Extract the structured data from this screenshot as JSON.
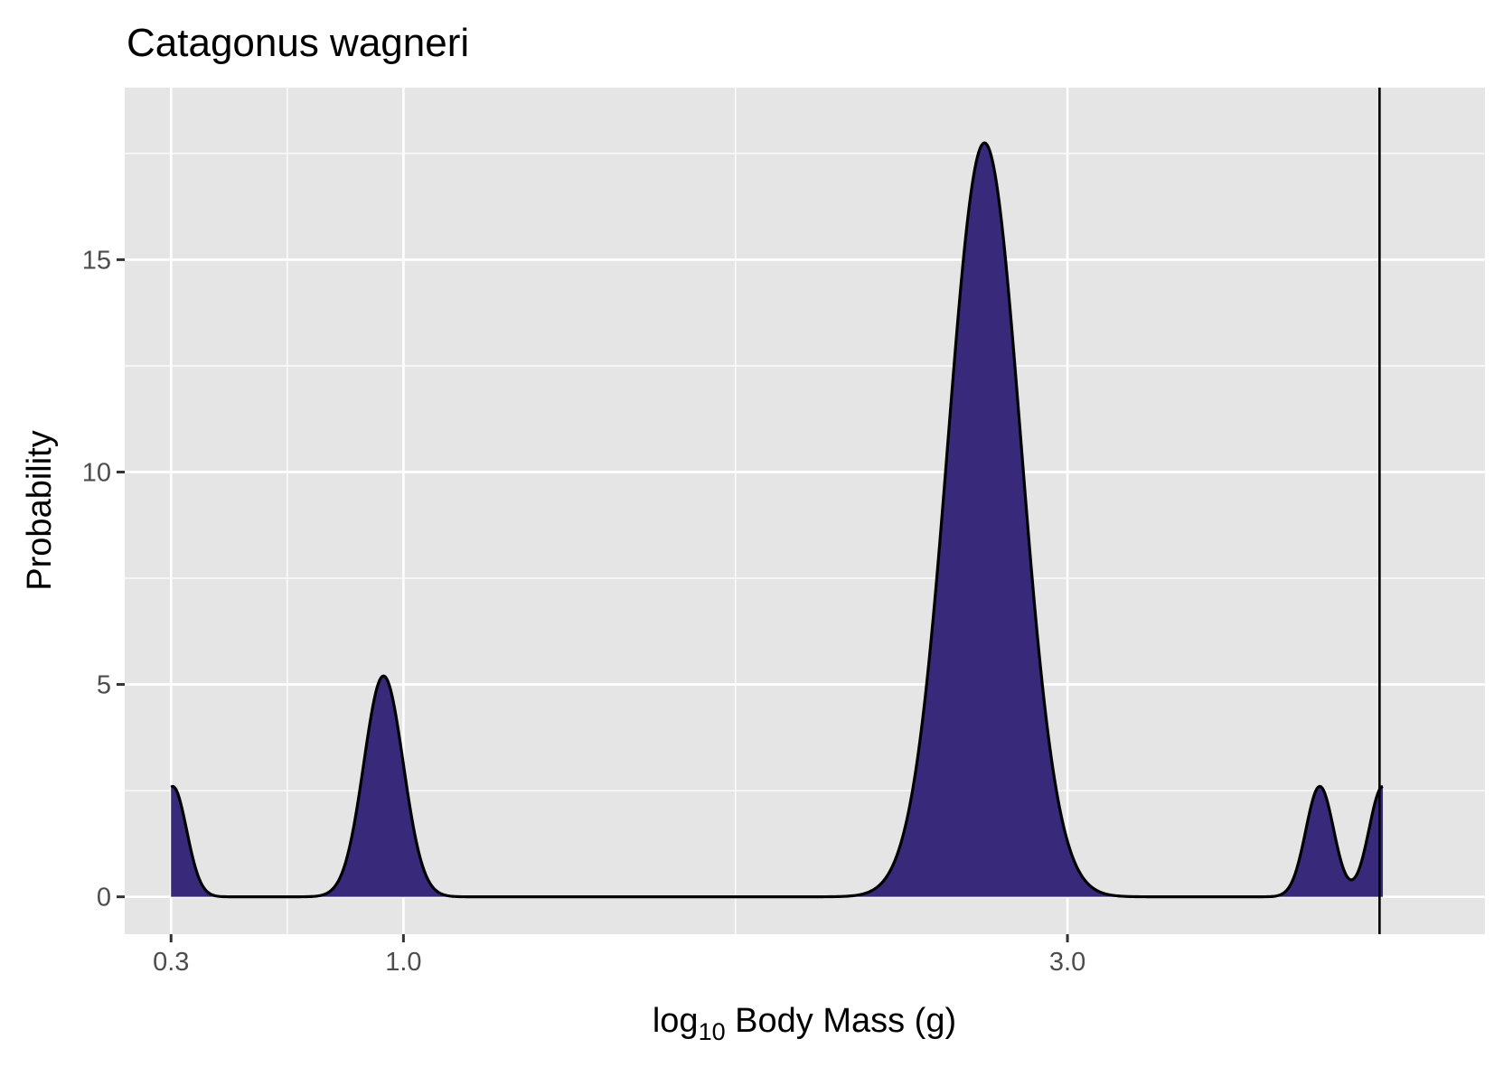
{
  "chart_data": {
    "type": "area",
    "title": "Catagonus wagneri",
    "xlabel_main": "log",
    "xlabel_sub": "10",
    "xlabel_rest": " Body Mass (g)",
    "ylabel": "Probability",
    "x_ticks": [
      0.3,
      1.0,
      3.0
    ],
    "x_tick_labels": [
      "0.3",
      "1.0",
      "3.0"
    ],
    "y_ticks": [
      0,
      5,
      10,
      15
    ],
    "y_tick_labels": [
      "0",
      "5",
      "10",
      "15"
    ],
    "x_minor_gridlines": [
      0.65,
      2.0
    ],
    "y_minor_gridlines": [
      2.5,
      7.5,
      12.5,
      17.5
    ],
    "xlim": [
      0.1605,
      4.2575
    ],
    "ylim": [
      -0.88,
      19.05
    ],
    "x_range_data": [
      0.3,
      3.95
    ],
    "peaks": [
      {
        "x": 0.305,
        "y": 2.6
      },
      {
        "x": 0.94,
        "y": 5.2
      },
      {
        "x": 2.75,
        "y": 17.75
      },
      {
        "x": 3.76,
        "y": 2.6
      },
      {
        "x": 3.95,
        "y": 2.6
      }
    ],
    "reference_line_x": 3.94,
    "fill_color": "#38297a",
    "line_color": "#000000",
    "panel_color": "#e5e5e5",
    "grid": true
  }
}
